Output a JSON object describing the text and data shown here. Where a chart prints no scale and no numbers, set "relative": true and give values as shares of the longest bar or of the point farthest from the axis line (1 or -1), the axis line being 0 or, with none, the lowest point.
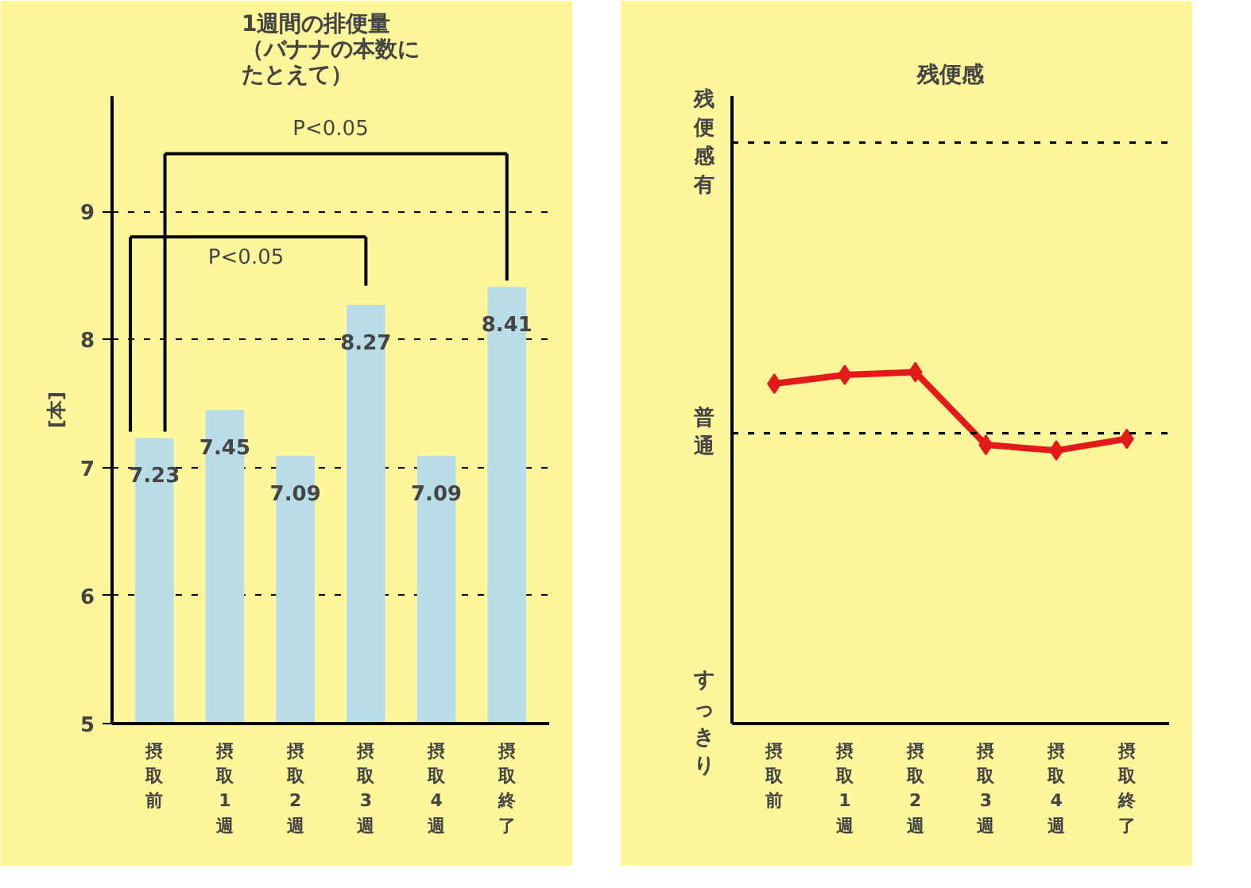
{
  "chart_data": [
    {
      "type": "bar",
      "title": "1週間の排便量（バナナの本数にたとえて）",
      "ylabel": "[本]",
      "categories": [
        "摂取前",
        "摂取1週",
        "摂取2週",
        "摂取3週",
        "摂取4週",
        "摂取終了"
      ],
      "values": [
        7.23,
        7.45,
        7.09,
        8.27,
        7.09,
        8.41
      ],
      "color": "#b9dde6",
      "ylim": [
        5,
        9.9
      ],
      "yticks": [
        5,
        6,
        7,
        8,
        9
      ],
      "grid": "y",
      "data_labels": true,
      "annotations": [
        "P<0.05",
        "P<0.05"
      ]
    },
    {
      "type": "line",
      "title": "残便感",
      "relative": true,
      "categories": [
        "摂取前",
        "摂取1週",
        "摂取2週",
        "摂取3週",
        "摂取4週",
        "摂取終了"
      ],
      "series": [
        {
          "color": "#e41a1a",
          "values": [
            0.967,
            0.992,
            1,
            0.793,
            0.777,
            0.81
          ]
        }
      ],
      "ref_lines": [
        {
          "axis": "y",
          "value": 0.826,
          "label": "普通"
        },
        {
          "axis": "y",
          "value": 1.653,
          "label": "残便感有"
        }
      ],
      "annotations": [
        "すっきり"
      ],
      "marker": "diamond",
      "line_style": "solid"
    }
  ]
}
